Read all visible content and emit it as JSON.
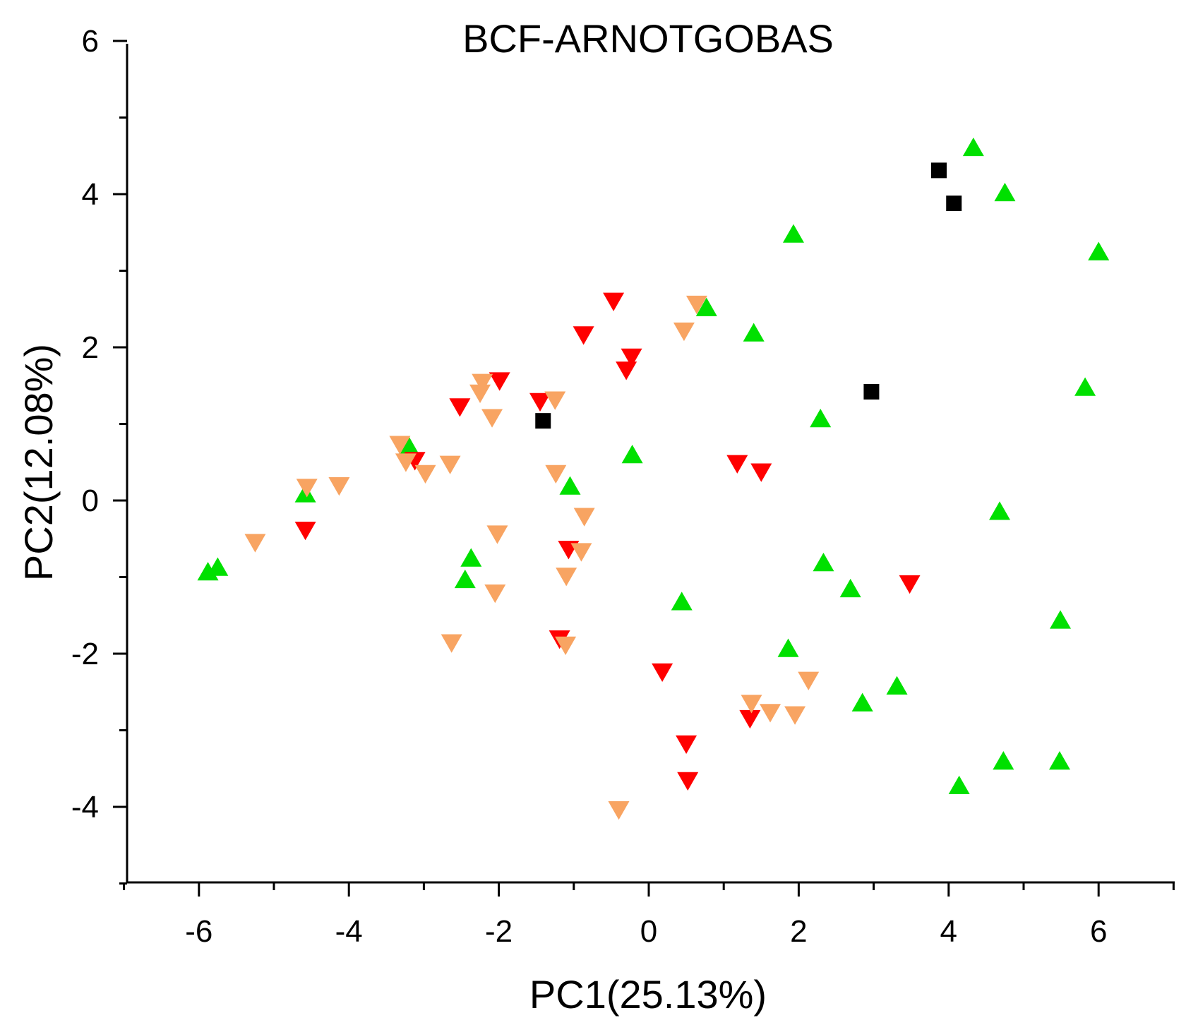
{
  "chart_data": {
    "type": "scatter",
    "title": "BCF-ARNOTGOBAS",
    "xlabel": "PC1(25.13%)",
    "ylabel": "PC2(12.08%)",
    "xlim": [
      -7,
      7
    ],
    "ylim": [
      -5,
      6
    ],
    "x_ticks": [
      -6,
      -4,
      -2,
      0,
      2,
      4,
      6
    ],
    "x_tick_labels": [
      "-6",
      "-4",
      "-2",
      "0",
      "2",
      "4",
      "6"
    ],
    "y_ticks": [
      -4,
      -2,
      0,
      2,
      4,
      6
    ],
    "y_tick_labels": [
      "-4",
      "-2",
      "0",
      "2",
      "4",
      "6"
    ],
    "grid": false,
    "series": [
      {
        "name": "black squares",
        "marker": "square",
        "color": "#000000",
        "points": [
          [
            3.87,
            4.31
          ],
          [
            4.07,
            3.88
          ],
          [
            2.97,
            1.42
          ],
          [
            -1.41,
            1.04
          ]
        ]
      },
      {
        "name": "green up-triangles",
        "marker": "triangle-up",
        "color": "#00E000",
        "points": [
          [
            4.33,
            4.6
          ],
          [
            4.75,
            4.01
          ],
          [
            6.0,
            3.24
          ],
          [
            1.93,
            3.47
          ],
          [
            0.77,
            2.51
          ],
          [
            1.4,
            2.18
          ],
          [
            5.82,
            1.47
          ],
          [
            2.29,
            1.06
          ],
          [
            -0.22,
            0.59
          ],
          [
            -1.05,
            0.18
          ],
          [
            -3.2,
            0.7
          ],
          [
            -4.58,
            0.08
          ],
          [
            4.68,
            -0.15
          ],
          [
            -2.37,
            -0.76
          ],
          [
            -2.45,
            -1.04
          ],
          [
            2.33,
            -0.82
          ],
          [
            2.69,
            -1.16
          ],
          [
            0.44,
            -1.33
          ],
          [
            -5.88,
            -0.94
          ],
          [
            -5.75,
            -0.88
          ],
          [
            5.49,
            -1.57
          ],
          [
            1.86,
            -1.94
          ],
          [
            3.31,
            -2.43
          ],
          [
            2.85,
            -2.65
          ],
          [
            4.73,
            -3.41
          ],
          [
            5.48,
            -3.41
          ],
          [
            4.14,
            -3.73
          ]
        ]
      },
      {
        "name": "red down-triangles",
        "marker": "triangle-down",
        "color": "#FF0000",
        "points": [
          [
            -0.47,
            2.61
          ],
          [
            -0.87,
            2.17
          ],
          [
            -0.23,
            1.88
          ],
          [
            -0.3,
            1.71
          ],
          [
            -1.99,
            1.57
          ],
          [
            -2.52,
            1.23
          ],
          [
            -1.45,
            1.3
          ],
          [
            -3.12,
            0.53
          ],
          [
            1.18,
            0.49
          ],
          [
            1.5,
            0.38
          ],
          [
            -4.58,
            -0.38
          ],
          [
            -1.07,
            -0.63
          ],
          [
            3.48,
            -1.08
          ],
          [
            -1.19,
            -1.8
          ],
          [
            0.18,
            -2.23
          ],
          [
            0.5,
            -3.17
          ],
          [
            1.35,
            -2.84
          ],
          [
            0.52,
            -3.65
          ]
        ]
      },
      {
        "name": "orange down-triangles",
        "marker": "triangle-down",
        "color": "#F8A462",
        "points": [
          [
            0.64,
            2.57
          ],
          [
            0.47,
            2.22
          ],
          [
            -2.22,
            1.55
          ],
          [
            -2.25,
            1.41
          ],
          [
            -1.25,
            1.32
          ],
          [
            -2.09,
            1.09
          ],
          [
            -3.32,
            0.74
          ],
          [
            -3.24,
            0.51
          ],
          [
            -2.98,
            0.36
          ],
          [
            -2.65,
            0.48
          ],
          [
            -4.56,
            0.18
          ],
          [
            -4.13,
            0.2
          ],
          [
            -1.24,
            0.36
          ],
          [
            -5.25,
            -0.54
          ],
          [
            -2.02,
            -0.43
          ],
          [
            -0.86,
            -0.2
          ],
          [
            -0.9,
            -0.66
          ],
          [
            -1.1,
            -0.98
          ],
          [
            -2.05,
            -1.2
          ],
          [
            -2.63,
            -1.85
          ],
          [
            -1.11,
            -1.88
          ],
          [
            2.13,
            -2.34
          ],
          [
            1.37,
            -2.64
          ],
          [
            1.62,
            -2.76
          ],
          [
            1.95,
            -2.79
          ],
          [
            -0.4,
            -4.03
          ]
        ]
      }
    ]
  }
}
